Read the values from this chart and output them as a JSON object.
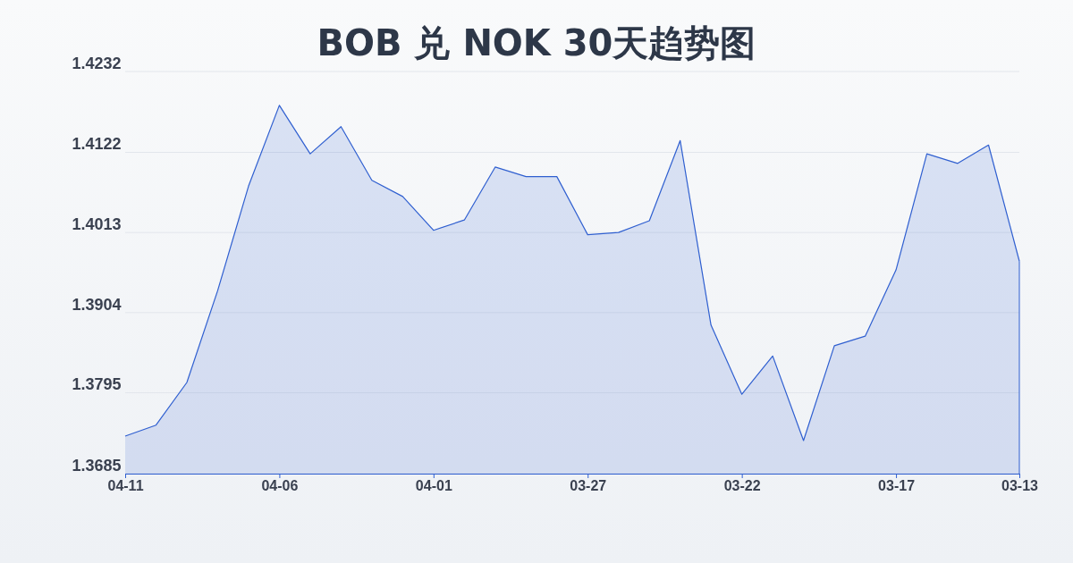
{
  "chart_data": {
    "type": "area",
    "title": "BOB 兑 NOK 30天趋势图",
    "categories": [
      "04-11",
      null,
      null,
      null,
      null,
      "04-06",
      null,
      null,
      null,
      null,
      "04-01",
      null,
      null,
      null,
      null,
      "03-27",
      null,
      null,
      null,
      null,
      "03-22",
      null,
      null,
      null,
      null,
      "03-17",
      null,
      null,
      null,
      "03-13"
    ],
    "series": [
      {
        "color": "#2f5fd0",
        "values": [
          1.3736,
          1.3751,
          1.3809,
          1.3934,
          1.4076,
          1.4186,
          1.412,
          1.4157,
          1.4084,
          1.4062,
          1.4016,
          1.403,
          1.4102,
          1.4089,
          1.4089,
          1.401,
          1.4013,
          1.4029,
          1.4138,
          1.3887,
          1.3793,
          1.3845,
          1.373,
          1.3859,
          1.3872,
          1.3962,
          1.412,
          1.4107,
          1.4132,
          1.3974
        ]
      }
    ],
    "ylim": [
      1.3685,
      1.4232
    ],
    "yticks": [
      1.3685,
      1.3795,
      1.3904,
      1.4013,
      1.4122,
      1.4232
    ],
    "grid": "y"
  }
}
